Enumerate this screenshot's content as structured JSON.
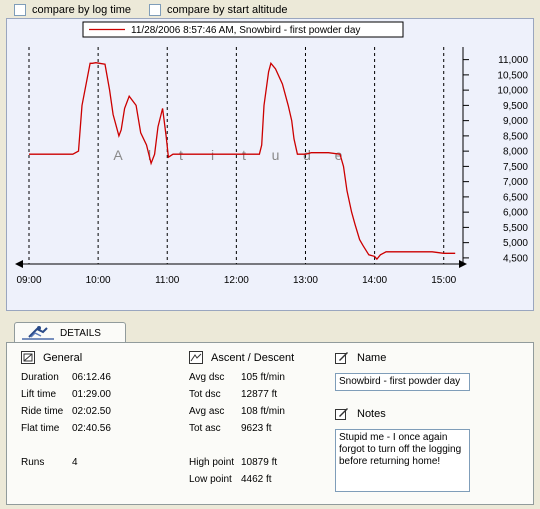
{
  "toolbar": {
    "compare_log_time": "compare by log time",
    "compare_start_altitude": "compare by start altitude"
  },
  "colors": {
    "series": "#cc0000",
    "grid": "#000000",
    "panel_bg": "#eef1fb"
  },
  "chart_data": {
    "type": "line",
    "legend": "11/28/2006 8:57:46 AM, Snowbird - first powder day",
    "watermark": "Altitude",
    "x_tick_labels": [
      "09:00",
      "10:00",
      "11:00",
      "12:00",
      "13:00",
      "14:00",
      "15:00"
    ],
    "y_tick_labels": [
      "4,500",
      "5,000",
      "5,500",
      "6,000",
      "6,500",
      "7,000",
      "7,500",
      "8,000",
      "8,500",
      "9,000",
      "9,500",
      "10,000",
      "10,500",
      "11,000"
    ],
    "xlim_hours": [
      9.0,
      15.25
    ],
    "ylim": [
      4300,
      11250
    ],
    "grid": true,
    "series": [
      {
        "x": [
          "09:00",
          "09:38",
          "09:43",
          "09:46",
          "09:53",
          "09:55",
          "09:58",
          "10:06",
          "10:10",
          "10:13",
          "10:18",
          "10:20",
          "10:23",
          "10:27",
          "10:33",
          "10:37",
          "10:42",
          "10:46",
          "10:49",
          "10:52",
          "10:56",
          "10:59",
          "11:01",
          "11:05",
          "11:09",
          "11:50",
          "12:20",
          "12:22",
          "12:24",
          "12:28",
          "12:30",
          "12:34",
          "12:40",
          "12:45",
          "12:48",
          "12:50",
          "12:53",
          "12:56",
          "13:00",
          "13:05",
          "13:20",
          "13:30",
          "13:33",
          "13:36",
          "13:40",
          "13:43",
          "13:47",
          "13:50",
          "13:55",
          "14:00",
          "14:02",
          "14:05",
          "14:10",
          "14:20",
          "14:40",
          "14:50",
          "15:00",
          "15:10"
        ],
        "y": [
          7900,
          7900,
          8000,
          9500,
          10879,
          10879,
          10900,
          10850,
          10000,
          9200,
          8500,
          8700,
          9400,
          9800,
          9500,
          8600,
          8200,
          7600,
          7900,
          8800,
          9400,
          8500,
          7800,
          7900,
          7900,
          7900,
          7900,
          8200,
          9500,
          10600,
          10879,
          10700,
          10200,
          9500,
          9000,
          8400,
          7900,
          7900,
          7900,
          7950,
          7950,
          7900,
          7500,
          6700,
          6000,
          5600,
          5100,
          4900,
          4600,
          4550,
          4462,
          4600,
          4700,
          4700,
          4700,
          4700,
          4650,
          4650
        ]
      }
    ]
  },
  "tab": {
    "label": "DETAILS"
  },
  "general": {
    "heading": "General",
    "rows": [
      {
        "label": "Duration",
        "value": "06:12.46"
      },
      {
        "label": "Lift time",
        "value": "01:29.00"
      },
      {
        "label": "Ride time",
        "value": "02:02.50"
      },
      {
        "label": "Flat time",
        "value": "02:40.56"
      }
    ],
    "runs_label": "Runs",
    "runs_value": "4"
  },
  "ascent": {
    "heading": "Ascent / Descent",
    "rows": [
      {
        "label": "Avg dsc",
        "value": "105 ft/min"
      },
      {
        "label": "Tot dsc",
        "value": "12877 ft"
      },
      {
        "label": "Avg asc",
        "value": "108 ft/min"
      },
      {
        "label": "Tot asc",
        "value": "9623 ft"
      }
    ],
    "high_label": "High point",
    "high_value": "10879 ft",
    "low_label": "Low point",
    "low_value": "4462 ft"
  },
  "name": {
    "heading": "Name",
    "value": "Snowbird - first powder day"
  },
  "notes": {
    "heading": "Notes",
    "value": "Stupid me - I once again forgot to turn off the logging before returning home!"
  }
}
